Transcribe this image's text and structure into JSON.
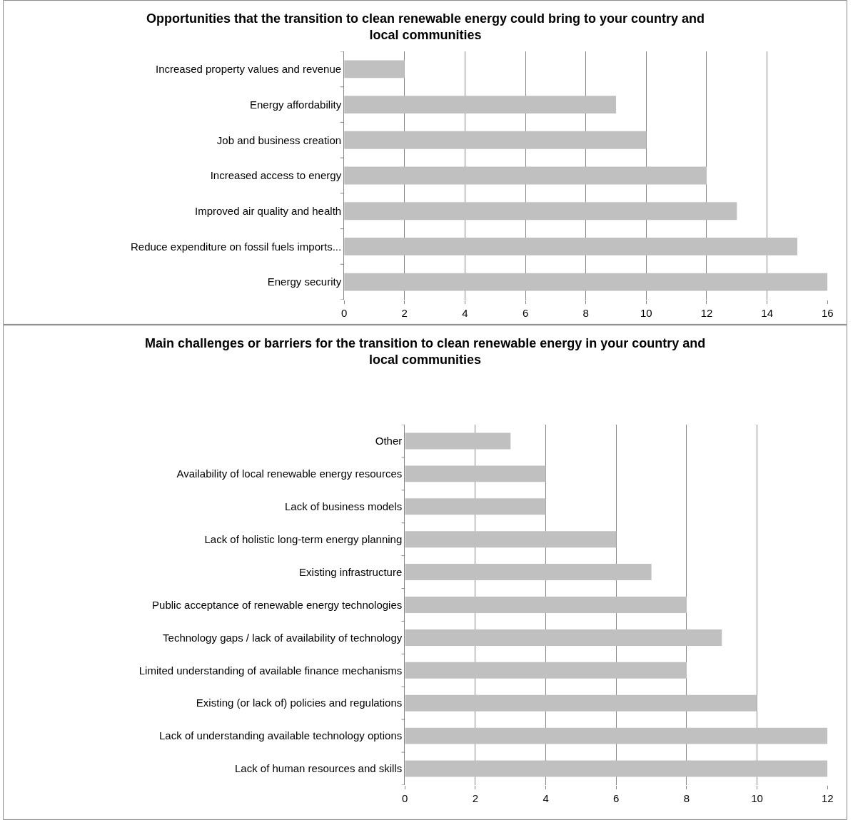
{
  "chart_data": [
    {
      "type": "bar",
      "orientation": "horizontal",
      "title": "Opportunities that the transition to clean renewable energy could bring to your country and local communities",
      "categories": [
        "Increased property values and revenue",
        "Energy affordability",
        "Job and business creation",
        "Increased access to energy",
        "Improved air quality and health",
        "Reduce expenditure on fossil fuels imports...",
        "Energy security"
      ],
      "values": [
        2,
        9,
        10,
        12,
        13,
        15,
        16
      ],
      "color": "#c0c0c0",
      "xlim": [
        0,
        16
      ],
      "xticks": [
        0,
        2,
        4,
        6,
        8,
        10,
        12,
        14,
        16
      ],
      "grid": "x"
    },
    {
      "type": "bar",
      "orientation": "horizontal",
      "title": "Main challenges or barriers for the transition to clean renewable energy in your country and local communities",
      "categories": [
        "Other",
        "Availability of local renewable energy resources",
        "Lack of business models",
        "Lack of holistic long-term energy planning",
        "Existing infrastructure",
        "Public acceptance of renewable energy technologies",
        "Technology gaps / lack of availability of technology",
        "Limited understanding of available finance mechanisms",
        "Existing (or lack of) policies and regulations",
        "Lack of understanding available technology options",
        "Lack of human resources and skills"
      ],
      "values": [
        3,
        4,
        4,
        6,
        7,
        8,
        9,
        8,
        10,
        12,
        12
      ],
      "color": "#c0c0c0",
      "xlim": [
        0,
        12
      ],
      "xticks": [
        0,
        2,
        4,
        6,
        8,
        10,
        12
      ],
      "grid": "x"
    }
  ]
}
